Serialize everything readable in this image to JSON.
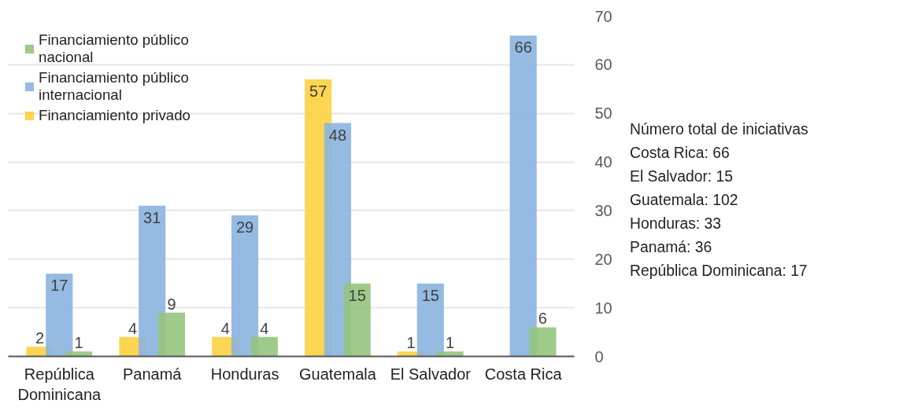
{
  "chart_data": {
    "type": "bar",
    "categories": [
      "República Dominicana",
      "Panamá",
      "Honduras",
      "Guatemala",
      "El Salvador",
      "Costa Rica"
    ],
    "series": [
      {
        "name": "Financiamiento público nacional",
        "color": "#93c47d",
        "values": [
          1,
          9,
          4,
          15,
          1,
          6
        ]
      },
      {
        "name": "Financiamiento público internacional",
        "color": "#8ab4e0",
        "values": [
          17,
          31,
          29,
          48,
          15,
          66
        ]
      },
      {
        "name": "Financiamiento privado",
        "color": "#fcd03f",
        "values": [
          2,
          4,
          4,
          57,
          1,
          null
        ]
      }
    ],
    "ylim": [
      0,
      70
    ],
    "yticks": [
      0,
      10,
      20,
      30,
      40,
      50,
      60,
      70
    ],
    "grid": "y",
    "legend": "top left",
    "data_labels": true,
    "annotations": [
      "Número total de iniciativas",
      "Costa Rica: 66",
      "El Salvador: 15",
      "Guatemala: 102",
      "Honduras: 33",
      "Panamá: 36",
      "República Dominicana: 17"
    ]
  }
}
